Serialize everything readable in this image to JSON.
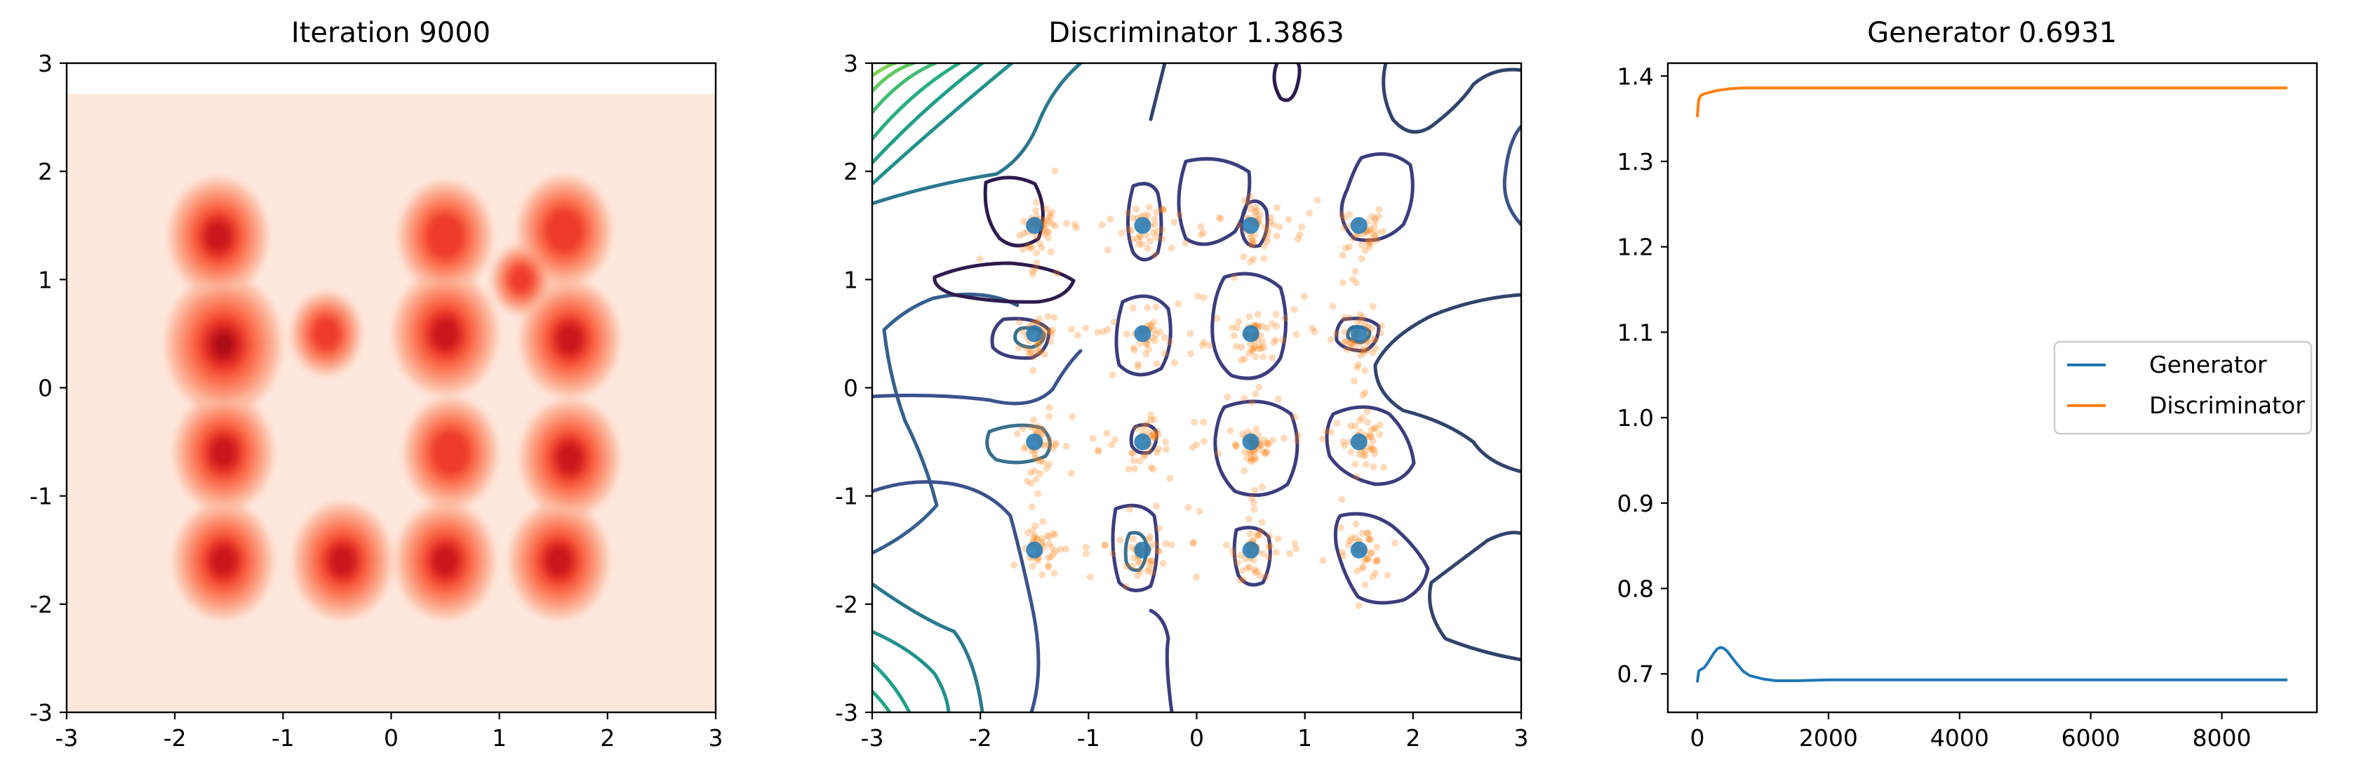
{
  "chart_data": [
    {
      "type": "heatmap",
      "title": "Iteration 9000",
      "xlim": [
        -3,
        3
      ],
      "ylim": [
        -3,
        3
      ],
      "xticks": [
        "-3",
        "-2",
        "-1",
        "0",
        "1",
        "2",
        "3"
      ],
      "yticks": [
        "3",
        "2",
        "1",
        "0",
        "-1",
        "-2",
        "-3"
      ],
      "colormap": "Reds",
      "background_color": "#fee8de",
      "density_peaks": [
        {
          "x": -1.6,
          "y": 1.4,
          "w": 0.85
        },
        {
          "x": 0.5,
          "y": 1.4,
          "w": 0.8
        },
        {
          "x": 1.6,
          "y": 1.45,
          "w": 0.8
        },
        {
          "x": -1.55,
          "y": 0.4,
          "w": 1.0
        },
        {
          "x": 0.5,
          "y": 0.5,
          "w": 0.9
        },
        {
          "x": 1.65,
          "y": 0.45,
          "w": 0.85
        },
        {
          "x": -1.55,
          "y": -0.6,
          "w": 0.85
        },
        {
          "x": 0.55,
          "y": -0.6,
          "w": 0.8
        },
        {
          "x": 1.65,
          "y": -0.65,
          "w": 0.85
        },
        {
          "x": -1.55,
          "y": -1.6,
          "w": 0.85
        },
        {
          "x": -0.45,
          "y": -1.6,
          "w": 0.85
        },
        {
          "x": 0.5,
          "y": -1.6,
          "w": 0.85
        },
        {
          "x": 1.55,
          "y": -1.6,
          "w": 0.85
        },
        {
          "x": -0.6,
          "y": 0.5,
          "w": 0.6
        },
        {
          "x": 1.2,
          "y": 1.0,
          "w": 0.5
        }
      ]
    },
    {
      "type": "scatter",
      "title": "Discriminator 1.3863",
      "xlim": [
        -3,
        3
      ],
      "ylim": [
        -3,
        3
      ],
      "xticks": [
        "-3",
        "-2",
        "-1",
        "0",
        "1",
        "2",
        "3"
      ],
      "yticks": [
        "3",
        "2",
        "1",
        "0",
        "-1",
        "-2",
        "-3"
      ],
      "colormap": "viridis",
      "real_points": [
        {
          "x": -1.5,
          "y": 1.5
        },
        {
          "x": -0.5,
          "y": 1.5
        },
        {
          "x": 0.5,
          "y": 1.5
        },
        {
          "x": 1.5,
          "y": 1.5
        },
        {
          "x": -1.5,
          "y": 0.5
        },
        {
          "x": -0.5,
          "y": 0.5
        },
        {
          "x": 0.5,
          "y": 0.5
        },
        {
          "x": 1.5,
          "y": 0.5
        },
        {
          "x": -1.5,
          "y": -0.5
        },
        {
          "x": -0.5,
          "y": -0.5
        },
        {
          "x": 0.5,
          "y": -0.5
        },
        {
          "x": 1.5,
          "y": -0.5
        },
        {
          "x": -1.5,
          "y": -1.5
        },
        {
          "x": -0.5,
          "y": -1.5
        },
        {
          "x": 0.5,
          "y": -1.5
        },
        {
          "x": 1.5,
          "y": -1.5
        }
      ],
      "real_color": "#1f77b4",
      "generated_color": "#ff7f0e"
    },
    {
      "type": "line",
      "title": "Generator 0.6931",
      "xlim": [
        -450,
        9450
      ],
      "ylim": [
        0.655,
        1.415
      ],
      "xticks": [
        0,
        2000,
        4000,
        6000,
        8000
      ],
      "xtick_labels": [
        "0",
        "2000",
        "4000",
        "6000",
        "8000"
      ],
      "yticks": [
        0.7,
        0.8,
        0.9,
        1.0,
        1.1,
        1.2,
        1.3,
        1.4
      ],
      "ytick_labels": [
        "0.7",
        "0.8",
        "0.9",
        "1.0",
        "1.1",
        "1.2",
        "1.3",
        "1.4"
      ],
      "legend_placement": "center-right",
      "series": [
        {
          "name": "Generator",
          "color": "#1f77b4",
          "x": [
            0,
            20,
            50,
            100,
            150,
            200,
            250,
            300,
            350,
            400,
            450,
            500,
            600,
            700,
            800,
            1000,
            1200,
            1500,
            2000,
            3000,
            4000,
            5000,
            6000,
            7000,
            8000,
            9000
          ],
          "y": [
            0.69,
            0.703,
            0.705,
            0.707,
            0.712,
            0.718,
            0.724,
            0.729,
            0.731,
            0.73,
            0.727,
            0.722,
            0.712,
            0.703,
            0.698,
            0.694,
            0.692,
            0.692,
            0.693,
            0.693,
            0.693,
            0.693,
            0.693,
            0.693,
            0.693,
            0.693
          ]
        },
        {
          "name": "Discriminator",
          "color": "#ff7f0e",
          "x": [
            0,
            20,
            50,
            100,
            150,
            200,
            300,
            400,
            500,
            700,
            1000,
            1500,
            2000,
            3000,
            4000,
            5000,
            6000,
            7000,
            8000,
            9000
          ],
          "y": [
            1.352,
            1.372,
            1.377,
            1.379,
            1.38,
            1.381,
            1.383,
            1.384,
            1.385,
            1.386,
            1.386,
            1.386,
            1.386,
            1.386,
            1.386,
            1.386,
            1.386,
            1.386,
            1.386,
            1.386
          ]
        }
      ]
    }
  ]
}
